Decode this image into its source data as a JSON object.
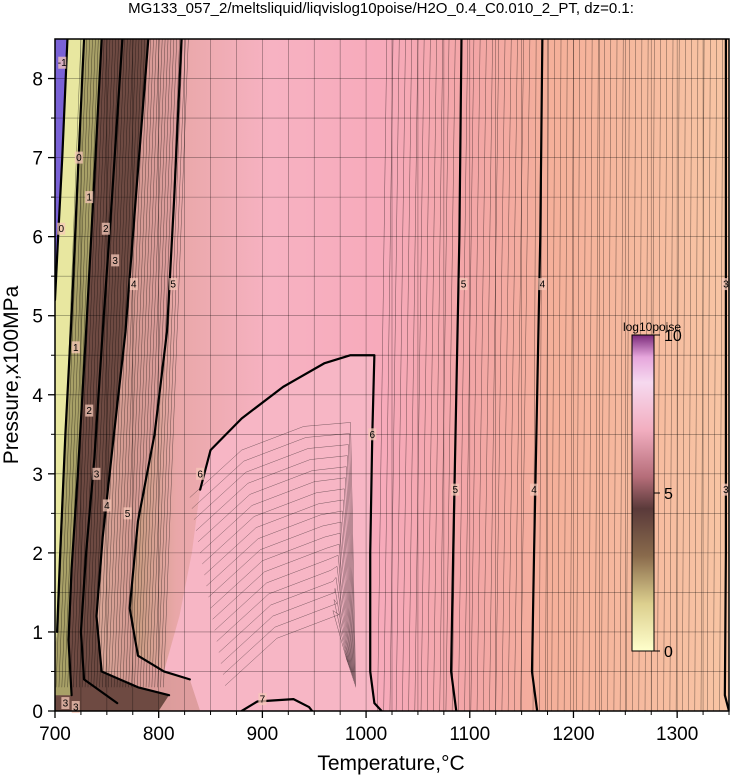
{
  "chart_data": {
    "type": "contour",
    "title": "MG133_057_2/meltsliquid/liqvislog10poise/H2O_0.4_C0.010_2_PT, dz=0.1:",
    "xlabel": "Temperature,°C",
    "ylabel": "Pressure,x100MPa",
    "xlim": [
      700,
      1350
    ],
    "ylim": [
      0,
      8.5
    ],
    "xticks": [
      700,
      800,
      900,
      1000,
      1100,
      1200,
      1300
    ],
    "yticks": [
      0,
      1,
      2,
      3,
      4,
      5,
      6,
      7,
      8
    ],
    "grid": true,
    "colorbar": {
      "title": "log10poise",
      "range": [
        0,
        10
      ],
      "ticks": [
        0,
        5,
        10
      ],
      "placement": "right-inside"
    },
    "contour_interval": 0.1,
    "major_contours": [
      {
        "level": "5",
        "points": [
          [
            822,
            8.5
          ],
          [
            815,
            6.5
          ],
          [
            808,
            4.8
          ],
          [
            796,
            3.5
          ],
          [
            780,
            2.4
          ],
          [
            772,
            1.3
          ],
          [
            780,
            0.7
          ],
          [
            805,
            0.5
          ],
          [
            830,
            0.4
          ]
        ]
      },
      {
        "level": "4",
        "points": [
          [
            790,
            8.5
          ],
          [
            778,
            6.5
          ],
          [
            768,
            4.8
          ],
          [
            756,
            3.4
          ],
          [
            746,
            2.2
          ],
          [
            740,
            1.2
          ],
          [
            745,
            0.5
          ],
          [
            780,
            0.3
          ],
          [
            810,
            0.2
          ]
        ]
      },
      {
        "level": "3",
        "points": [
          [
            765,
            8.5
          ],
          [
            755,
            6.5
          ],
          [
            746,
            4.8
          ],
          [
            738,
            3.2
          ],
          [
            730,
            2.0
          ],
          [
            725,
            1.0
          ],
          [
            728,
            0.4
          ],
          [
            760,
            0.1
          ]
        ]
      },
      {
        "level": "2",
        "points": [
          [
            745,
            8.5
          ],
          [
            737,
            6.5
          ],
          [
            730,
            4.8
          ],
          [
            722,
            3.0
          ],
          [
            716,
            1.8
          ],
          [
            713,
            0.9
          ],
          [
            716,
            0.2
          ]
        ]
      },
      {
        "level": "1",
        "points": [
          [
            728,
            8.5
          ],
          [
            721,
            6.5
          ],
          [
            716,
            5.0
          ],
          [
            710,
            3.5
          ],
          [
            705,
            2.0
          ],
          [
            702,
            1.0
          ]
        ]
      },
      {
        "level": "0",
        "points": [
          [
            712,
            8.5
          ],
          [
            707,
            7.0
          ],
          [
            703,
            6.0
          ],
          [
            700,
            5.2
          ]
        ]
      },
      {
        "level": "6",
        "points": [
          [
            840,
            2.8
          ],
          [
            850,
            3.3
          ],
          [
            880,
            3.7
          ],
          [
            920,
            4.1
          ],
          [
            960,
            4.4
          ],
          [
            985,
            4.5
          ],
          [
            1008,
            4.5
          ],
          [
            1006,
            3.5
          ],
          [
            1004,
            2.0
          ],
          [
            1004,
            0.5
          ],
          [
            1008,
            0.1
          ],
          [
            1015,
            0
          ]
        ]
      },
      {
        "level": "5",
        "points": [
          [
            1092,
            8.5
          ],
          [
            1090,
            6.0
          ],
          [
            1087,
            4.0
          ],
          [
            1084,
            2.0
          ],
          [
            1082,
            0.5
          ],
          [
            1087,
            0
          ]
        ]
      },
      {
        "level": "4",
        "points": [
          [
            1170,
            8.5
          ],
          [
            1168,
            6.0
          ],
          [
            1165,
            4.0
          ],
          [
            1162,
            2.0
          ],
          [
            1160,
            0.5
          ],
          [
            1165,
            0
          ]
        ]
      },
      {
        "level": "3",
        "points": [
          [
            1347,
            8.5
          ],
          [
            1347,
            5.0
          ],
          [
            1347,
            2.0
          ],
          [
            1346,
            0.2
          ],
          [
            1350,
            0
          ]
        ]
      },
      {
        "level": "7",
        "points": [
          [
            880,
            0
          ],
          [
            895,
            0.12
          ],
          [
            930,
            0.15
          ],
          [
            945,
            0.05
          ],
          [
            948,
            0
          ]
        ]
      }
    ],
    "contour_labels": [
      {
        "text": "0",
        "x": 723,
        "y": 7.0
      },
      {
        "text": "1",
        "x": 733,
        "y": 6.5
      },
      {
        "text": "2",
        "x": 749,
        "y": 6.1
      },
      {
        "text": "3",
        "x": 758,
        "y": 5.7
      },
      {
        "text": "4",
        "x": 776,
        "y": 5.4
      },
      {
        "text": "5",
        "x": 814,
        "y": 5.4
      },
      {
        "text": "0",
        "x": 706,
        "y": 6.1
      },
      {
        "text": "1",
        "x": 720,
        "y": 4.6
      },
      {
        "text": "2",
        "x": 733,
        "y": 3.8
      },
      {
        "text": "3",
        "x": 740,
        "y": 3.0
      },
      {
        "text": "4",
        "x": 750,
        "y": 2.6
      },
      {
        "text": "5",
        "x": 770,
        "y": 2.5
      },
      {
        "text": "6",
        "x": 840,
        "y": 3.0
      },
      {
        "text": "6",
        "x": 1006,
        "y": 3.5
      },
      {
        "text": "5",
        "x": 1094,
        "y": 5.4
      },
      {
        "text": "5",
        "x": 1086,
        "y": 2.8
      },
      {
        "text": "4",
        "x": 1170,
        "y": 5.4
      },
      {
        "text": "4",
        "x": 1162,
        "y": 2.8
      },
      {
        "text": "3",
        "x": 1347,
        "y": 5.4
      },
      {
        "text": "3",
        "x": 1347,
        "y": 2.8
      },
      {
        "text": "7",
        "x": 900,
        "y": 0.15
      },
      {
        "text": "3",
        "x": 710,
        "y": 0.1
      },
      {
        "text": "3",
        "x": 720,
        "y": 0.05
      },
      {
        "text": "-1",
        "x": 707,
        "y": 8.2
      }
    ],
    "colors": {
      "low": "#7a62d6",
      "yellow": "#e8e7a0",
      "olive": "#a8a067",
      "brown": "#6e4a42",
      "pink": "#f3a7b3",
      "light_pink": "#f7b6c5",
      "salmon": "#f6b29a",
      "peach": "#f8c2a1"
    }
  }
}
